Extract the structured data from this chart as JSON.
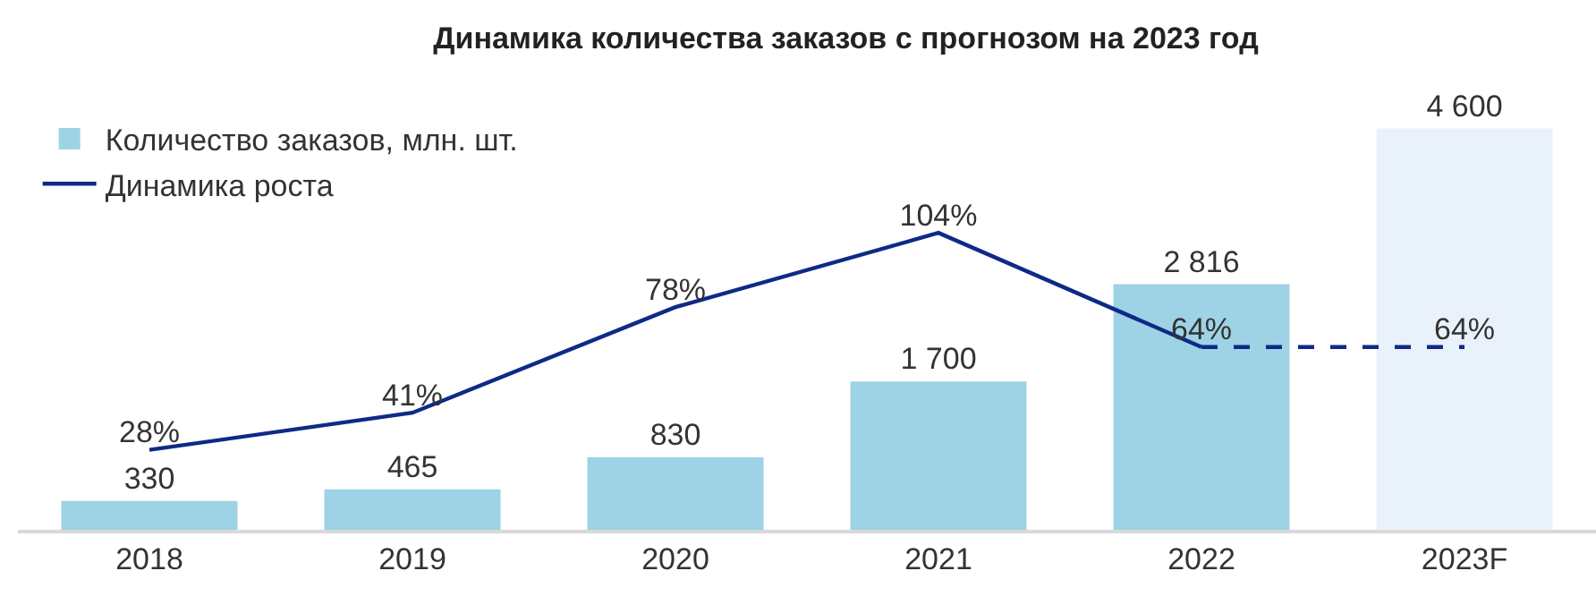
{
  "chart_data": {
    "type": "bar",
    "title": "Динамика количества заказов с прогнозом на 2023 год",
    "categories": [
      "2018",
      "2019",
      "2020",
      "2021",
      "2022",
      "2023F"
    ],
    "series": [
      {
        "name": "Количество заказов, млн. шт.",
        "colors": [
          "#9dd3e5",
          "#9dd3e5",
          "#9dd3e5",
          "#9dd3e5",
          "#9dd3e5",
          "#e9f2fa"
        ],
        "values": [
          330,
          465,
          830,
          1700,
          2816,
          4600
        ],
        "value_labels": [
          "330",
          "465",
          "830",
          "1 700",
          "2 816",
          "4 600"
        ]
      },
      {
        "type": "line",
        "name": "Динамика роста",
        "color": "#0e2a87",
        "axis": "y2",
        "line_style": "solid",
        "values": [
          28,
          41,
          78,
          104,
          64,
          null
        ],
        "value_labels": [
          "28%",
          "41%",
          "78%",
          "104%",
          "64%",
          null
        ]
      },
      {
        "type": "line",
        "color": "#0e2a87",
        "axis": "y2",
        "line_style": "dashed",
        "values": [
          null,
          null,
          null,
          null,
          64,
          64
        ],
        "value_labels": [
          null,
          null,
          null,
          null,
          null,
          "64%"
        ]
      }
    ],
    "tick_labels": "x",
    "grid": false,
    "legend": "top left",
    "marker": "none"
  }
}
